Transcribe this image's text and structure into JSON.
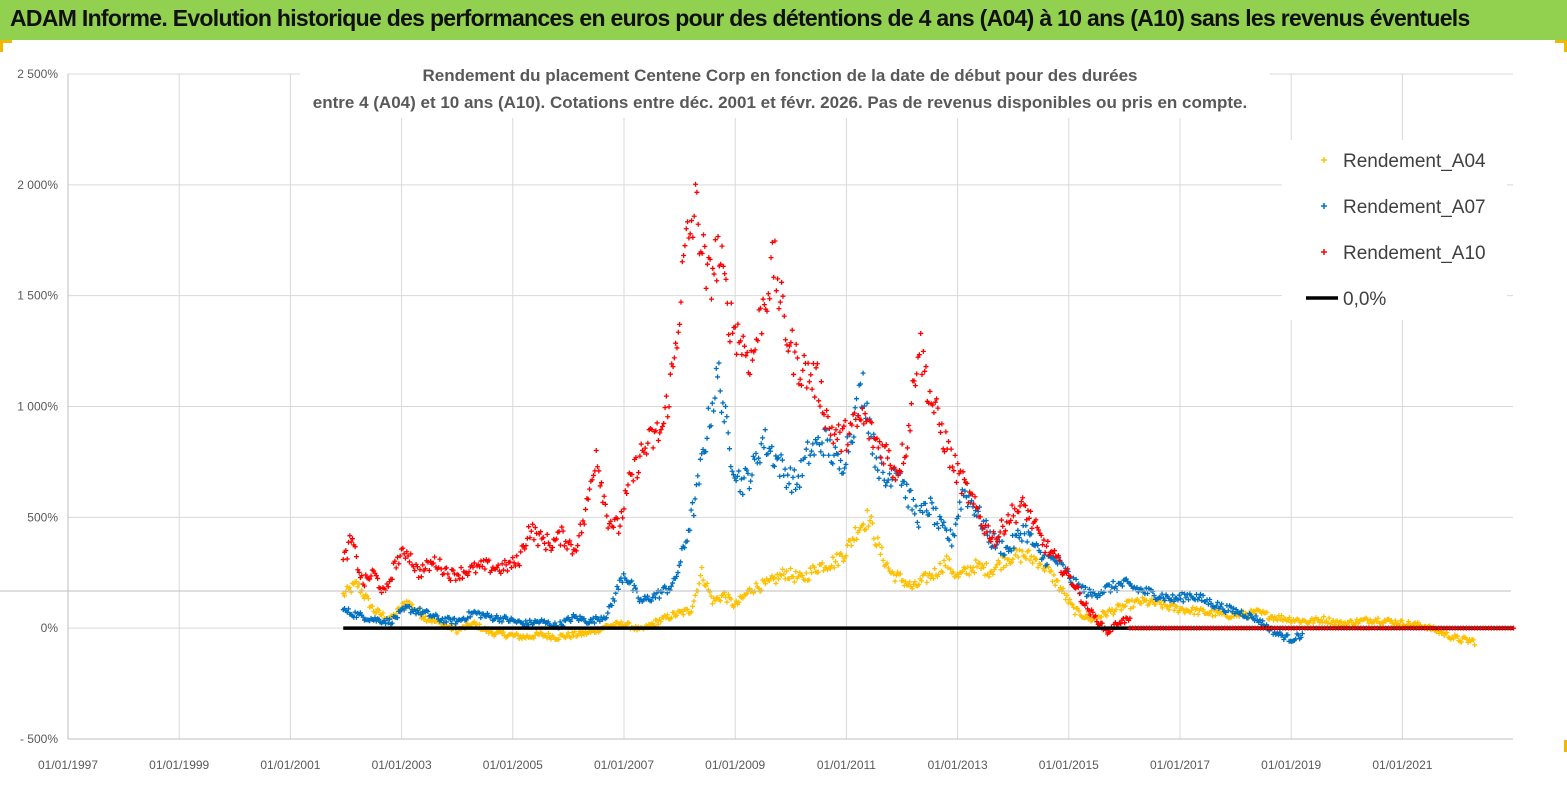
{
  "header": {
    "title": "ADAM Informe. Evolution historique des performances en euros pour des détentions de 4 ans (A04) à 10 ans (A10) sans les revenus éventuels"
  },
  "colors": {
    "banner": "#92d050",
    "A04": "#ffc000",
    "A07": "#0070c0",
    "A10": "#ff0000",
    "zero": "#000000",
    "grid": "#d9d9d9"
  },
  "chart_data": {
    "type": "scatter",
    "title_lines": [
      "Rendement du placement Centene Corp en fonction de la date de début pour des durées",
      "entre 4 (A04) et 10 ans (A10). Cotations entre déc. 2001 et févr. 2026. Pas de revenus disponibles ou pris en compte."
    ],
    "x_tick_labels": [
      "01/01/1997",
      "01/01/1999",
      "01/01/2001",
      "01/01/2003",
      "01/01/2005",
      "01/01/2007",
      "01/01/2009",
      "01/01/2011",
      "01/01/2013",
      "01/01/2015",
      "01/01/2017",
      "01/01/2019",
      "01/01/2021"
    ],
    "x_range": [
      1997.0,
      2023.0
    ],
    "y_ticks": [
      -500,
      0,
      500,
      1000,
      1500,
      2000,
      2500
    ],
    "y_tick_labels": [
      "- 500%",
      "0%",
      "500%",
      "1 000%",
      "1 500%",
      "2 000%",
      "2 500%"
    ],
    "ylim": [
      -500,
      2500
    ],
    "legend": [
      "Rendement_A04",
      "Rendement_A07",
      "Rendement_A10",
      "0,0%"
    ],
    "legend_position": "top-right",
    "series": [
      {
        "name": "Rendement_A04",
        "x": [
          2001.95,
          2002.2,
          2002.5,
          2002.8,
          2003.1,
          2003.4,
          2003.7,
          2004.0,
          2004.3,
          2004.6,
          2004.9,
          2005.2,
          2005.5,
          2005.8,
          2006.1,
          2006.4,
          2006.7,
          2007.0,
          2007.3,
          2007.6,
          2007.9,
          2008.2,
          2008.4,
          2008.6,
          2008.8,
          2009.0,
          2009.3,
          2009.6,
          2009.9,
          2010.2,
          2010.5,
          2010.8,
          2011.0,
          2011.2,
          2011.4,
          2011.6,
          2011.8,
          2012.0,
          2012.2,
          2012.4,
          2012.6,
          2012.8,
          2013.0,
          2013.3,
          2013.6,
          2013.9,
          2014.2,
          2014.5,
          2014.8,
          2015.1,
          2015.4,
          2015.7,
          2016.0,
          2016.3,
          2016.6,
          2016.9,
          2017.2,
          2017.5,
          2017.8,
          2018.1,
          2018.4,
          2018.7,
          2019.0,
          2019.3,
          2019.6,
          2019.9,
          2020.2,
          2020.5,
          2020.8,
          2021.1,
          2021.4,
          2021.7,
          2022.0,
          2022.3
        ],
        "y": [
          150,
          200,
          80,
          40,
          120,
          50,
          20,
          -10,
          20,
          -20,
          -30,
          -40,
          -30,
          -40,
          -30,
          -20,
          10,
          20,
          -10,
          30,
          60,
          80,
          250,
          120,
          150,
          100,
          180,
          200,
          250,
          220,
          280,
          300,
          350,
          450,
          500,
          350,
          250,
          220,
          180,
          220,
          250,
          300,
          230,
          280,
          260,
          320,
          330,
          300,
          200,
          80,
          40,
          70,
          100,
          120,
          110,
          90,
          80,
          70,
          60,
          60,
          70,
          50,
          40,
          30,
          40,
          20,
          30,
          40,
          30,
          20,
          10,
          -20,
          -50,
          -60
        ]
      },
      {
        "name": "Rendement_A07",
        "x": [
          2001.95,
          2002.2,
          2002.5,
          2002.8,
          2003.1,
          2003.4,
          2003.7,
          2004.0,
          2004.3,
          2004.6,
          2004.9,
          2005.2,
          2005.5,
          2005.8,
          2006.1,
          2006.4,
          2006.7,
          2007.0,
          2007.3,
          2007.6,
          2007.9,
          2008.1,
          2008.3,
          2008.5,
          2008.7,
          2008.9,
          2009.1,
          2009.3,
          2009.5,
          2009.7,
          2009.9,
          2010.1,
          2010.3,
          2010.6,
          2010.9,
          2011.1,
          2011.3,
          2011.5,
          2011.7,
          2011.9,
          2012.1,
          2012.3,
          2012.5,
          2012.7,
          2012.9,
          2013.1,
          2013.3,
          2013.6,
          2013.9,
          2014.2,
          2014.5,
          2014.8,
          2015.1,
          2015.4,
          2015.7,
          2016.0,
          2016.3,
          2016.6,
          2016.9,
          2017.2,
          2017.5,
          2017.8,
          2018.1,
          2018.4,
          2018.7,
          2019.0,
          2019.2
        ],
        "y": [
          80,
          60,
          40,
          30,
          90,
          70,
          40,
          30,
          70,
          50,
          40,
          20,
          30,
          10,
          50,
          30,
          60,
          250,
          120,
          150,
          200,
          380,
          600,
          900,
          1150,
          800,
          650,
          700,
          850,
          780,
          700,
          650,
          780,
          850,
          720,
          900,
          1100,
          800,
          650,
          750,
          600,
          500,
          550,
          450,
          400,
          620,
          550,
          400,
          350,
          450,
          320,
          300,
          200,
          150,
          180,
          200,
          170,
          150,
          130,
          150,
          120,
          90,
          70,
          40,
          -20,
          -50,
          -30
        ]
      },
      {
        "name": "Rendement_A10",
        "x": [
          2001.95,
          2002.1,
          2002.3,
          2002.5,
          2002.7,
          2002.9,
          2003.1,
          2003.3,
          2003.6,
          2003.9,
          2004.2,
          2004.5,
          2004.8,
          2005.1,
          2005.3,
          2005.5,
          2005.7,
          2005.9,
          2006.1,
          2006.3,
          2006.5,
          2006.7,
          2006.9,
          2007.1,
          2007.3,
          2007.5,
          2007.7,
          2007.9,
          2008.1,
          2008.3,
          2008.5,
          2008.7,
          2008.9,
          2009.1,
          2009.3,
          2009.5,
          2009.7,
          2009.9,
          2010.1,
          2010.3,
          2010.5,
          2010.7,
          2010.9,
          2011.1,
          2011.3,
          2011.5,
          2011.7,
          2011.9,
          2012.1,
          2012.3,
          2012.5,
          2012.7,
          2012.9,
          2013.1,
          2013.3,
          2013.5,
          2013.7,
          2013.9,
          2014.2,
          2014.5,
          2014.8,
          2015.1,
          2015.3,
          2015.5,
          2015.7,
          2015.9,
          2016.1
        ],
        "y": [
          300,
          400,
          200,
          250,
          150,
          300,
          350,
          250,
          300,
          240,
          260,
          280,
          270,
          300,
          450,
          400,
          380,
          420,
          350,
          500,
          800,
          500,
          450,
          650,
          780,
          850,
          900,
          1200,
          1700,
          1900,
          1550,
          1700,
          1400,
          1300,
          1200,
          1450,
          1650,
          1350,
          1200,
          1150,
          1100,
          900,
          850,
          900,
          950,
          850,
          800,
          700,
          850,
          1300,
          1050,
          900,
          750,
          650,
          550,
          450,
          400,
          500,
          550,
          400,
          300,
          200,
          100,
          40,
          -20,
          30,
          40
        ]
      },
      {
        "name": "0,0%",
        "x": [
          2001.95,
          2023.0
        ],
        "y": [
          0,
          0
        ]
      }
    ]
  }
}
